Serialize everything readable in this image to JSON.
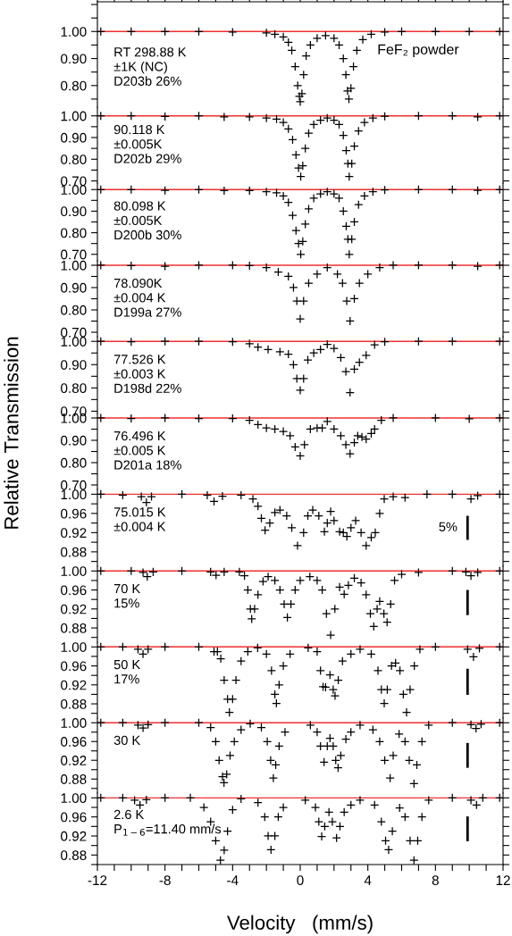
{
  "chart_data": [
    {
      "type": "scatter",
      "marker": "cross",
      "xlim": [
        -12,
        12
      ],
      "ylim": [
        0.72,
        1.11
      ],
      "xticks": [
        -12,
        {
          "value": -11,
          "label": null
        },
        {
          "value": -10,
          "label": null
        },
        {
          "value": -9,
          "label": null
        },
        -8,
        {
          "value": -7,
          "label": null
        },
        {
          "value": -6,
          "label": null
        },
        {
          "value": -5,
          "label": null
        },
        -4,
        {
          "value": -3,
          "label": null
        },
        {
          "value": -2,
          "label": null
        },
        {
          "value": -1,
          "label": null
        },
        0,
        {
          "value": 1,
          "label": null
        },
        {
          "value": 2,
          "label": null
        },
        {
          "value": 3,
          "label": null
        },
        4,
        {
          "value": 5,
          "label": null
        },
        {
          "value": 6,
          "label": null
        },
        {
          "value": 7,
          "label": null
        },
        8,
        {
          "value": 9,
          "label": null
        },
        {
          "value": 10,
          "label": null
        },
        {
          "value": 11,
          "label": null
        },
        12
      ],
      "yticks": [
        {
          "value": 0.75,
          "label": null
        },
        {
          "value": 0.8,
          "label": "0.80"
        },
        {
          "value": 0.85,
          "label": null
        },
        {
          "value": 0.9,
          "label": "0.90"
        },
        {
          "value": 0.95,
          "label": null
        },
        {
          "value": 1.0,
          "label": "1.00"
        },
        {
          "value": 1.05,
          "label": null
        },
        {
          "value": 1.1,
          "label": null
        }
      ],
      "tick_labels": "y",
      "ref_lines": [
        {
          "axis": "y",
          "value": 1.0,
          "color": "#f03030"
        }
      ],
      "annotations": [
        "RT 298.88 K\n±1K (NC)\nD203b 26%",
        "FeF₂ powder"
      ],
      "series": [
        {
          "color": "#000000",
          "x": [
            -11.8,
            -10,
            -8,
            -6,
            -4,
            -2,
            -1.5,
            -1,
            -0.7,
            -0.5,
            -0.3,
            -0.15,
            -0.05,
            0.0,
            0.1,
            0.2,
            0.35,
            0.6,
            1.0,
            1.5,
            2.0,
            2.3,
            2.55,
            2.7,
            2.8,
            2.88,
            3.0,
            3.15,
            3.35,
            3.7,
            4.2,
            5,
            6,
            8,
            10,
            11.8
          ],
          "values": [
            1.0,
            1.0,
            1.0,
            1.0,
            0.998,
            0.995,
            0.99,
            0.98,
            0.96,
            0.93,
            0.87,
            0.8,
            0.76,
            0.74,
            0.77,
            0.84,
            0.91,
            0.95,
            0.975,
            0.985,
            0.975,
            0.95,
            0.9,
            0.84,
            0.78,
            0.75,
            0.79,
            0.87,
            0.93,
            0.97,
            0.99,
            0.998,
            1.0,
            1.0,
            1.0,
            1.0
          ]
        }
      ]
    },
    {
      "type": "scatter",
      "marker": "cross",
      "xlim": [
        -12,
        12
      ],
      "ylim": [
        0.69,
        1.04
      ],
      "xticks": [
        -12,
        -8,
        -4,
        0,
        4,
        8,
        12
      ],
      "yticks": [
        {
          "value": 0.7,
          "label": "0.70"
        },
        {
          "value": 0.75,
          "label": null
        },
        {
          "value": 0.8,
          "label": "0.80"
        },
        {
          "value": 0.85,
          "label": null
        },
        {
          "value": 0.9,
          "label": "0.90"
        },
        {
          "value": 0.95,
          "label": null
        },
        {
          "value": 1.0,
          "label": "1.00"
        }
      ],
      "tick_labels": "y",
      "ref_lines": [
        {
          "axis": "y",
          "value": 1.0,
          "color": "#f03030"
        }
      ],
      "annotations": [
        "90.118 K\n±0.005K\nD202b 29%"
      ],
      "series": [
        {
          "color": "#000000",
          "x": [
            -11.8,
            -10,
            -8,
            -6,
            -4.5,
            -3,
            -2,
            -1.4,
            -1,
            -0.7,
            -0.45,
            -0.25,
            -0.1,
            0.03,
            0.15,
            0.3,
            0.5,
            0.8,
            1.2,
            1.6,
            2.0,
            2.3,
            2.55,
            2.72,
            2.82,
            2.9,
            3.05,
            3.2,
            3.45,
            3.8,
            4.3,
            5,
            7,
            9,
            10.5,
            11.8
          ],
          "values": [
            1.0,
            1.0,
            0.997,
            1.0,
            0.995,
            0.995,
            0.99,
            0.985,
            0.97,
            0.94,
            0.89,
            0.82,
            0.76,
            0.72,
            0.77,
            0.85,
            0.92,
            0.96,
            0.98,
            0.99,
            0.98,
            0.96,
            0.91,
            0.84,
            0.78,
            0.72,
            0.78,
            0.86,
            0.93,
            0.97,
            0.99,
            0.998,
            1.0,
            1.0,
            0.995,
            1.0
          ]
        }
      ]
    },
    {
      "type": "scatter",
      "marker": "cross",
      "xlim": [
        -12,
        12
      ],
      "ylim": [
        0.67,
        1.03
      ],
      "xticks": [
        -12,
        -8,
        -4,
        0,
        4,
        8,
        12
      ],
      "yticks": [
        {
          "value": 0.7,
          "label": "0.70"
        },
        {
          "value": 0.75,
          "label": null
        },
        {
          "value": 0.8,
          "label": "0.80"
        },
        {
          "value": 0.85,
          "label": null
        },
        {
          "value": 0.9,
          "label": "0.90"
        },
        {
          "value": 0.95,
          "label": null
        },
        {
          "value": 1.0,
          "label": "1.00"
        }
      ],
      "tick_labels": "y",
      "ref_lines": [
        {
          "axis": "y",
          "value": 1.0,
          "color": "#f03030"
        }
      ],
      "annotations": [
        "80.098 K\n±0.005K\nD200b 30%"
      ],
      "series": [
        {
          "color": "#000000",
          "x": [
            -11.8,
            -10,
            -8,
            -6,
            -4.5,
            -3,
            -2,
            -1.4,
            -1,
            -0.7,
            -0.45,
            -0.25,
            -0.1,
            0.03,
            0.15,
            0.3,
            0.5,
            0.8,
            1.2,
            1.6,
            2.0,
            2.3,
            2.55,
            2.72,
            2.82,
            2.9,
            3.05,
            3.2,
            3.45,
            3.8,
            4.3,
            5,
            7,
            9,
            10.5,
            11.8
          ],
          "values": [
            1.0,
            1.0,
            0.996,
            1.0,
            0.995,
            0.995,
            0.99,
            0.985,
            0.97,
            0.94,
            0.88,
            0.81,
            0.75,
            0.7,
            0.76,
            0.84,
            0.91,
            0.96,
            0.98,
            0.99,
            0.98,
            0.96,
            0.9,
            0.83,
            0.77,
            0.7,
            0.77,
            0.85,
            0.93,
            0.97,
            0.99,
            0.998,
            1.0,
            1.0,
            0.996,
            1.0
          ]
        }
      ]
    },
    {
      "type": "scatter",
      "marker": "cross",
      "xlim": [
        -12,
        12
      ],
      "ylim": [
        0.68,
        1.02
      ],
      "xticks": [
        -12,
        -8,
        -4,
        0,
        4,
        8,
        12
      ],
      "yticks": [
        {
          "value": 0.7,
          "label": "0.70"
        },
        {
          "value": 0.75,
          "label": null
        },
        {
          "value": 0.8,
          "label": "0.80"
        },
        {
          "value": 0.85,
          "label": null
        },
        {
          "value": 0.9,
          "label": "0.90"
        },
        {
          "value": 0.95,
          "label": null
        },
        {
          "value": 1.0,
          "label": "1.00"
        }
      ],
      "tick_labels": "y",
      "ref_lines": [
        {
          "axis": "y",
          "value": 1.0,
          "color": "#f03030"
        }
      ],
      "annotations": [
        "78.090K\n±0.004 K\nD199a 27%"
      ],
      "series": [
        {
          "color": "#000000",
          "x": [
            -11.8,
            -10,
            -8,
            -6,
            -4,
            -3,
            -2,
            -1.3,
            -0.7,
            -0.4,
            -0.2,
            0.0,
            0.2,
            0.5,
            1.0,
            1.6,
            2.2,
            2.5,
            2.75,
            2.95,
            3.2,
            3.5,
            4.0,
            4.7,
            5.5,
            7,
            9,
            10.5,
            11.8
          ],
          "values": [
            1.0,
            0.998,
            0.996,
            1.0,
            1.0,
            0.998,
            0.99,
            0.97,
            0.95,
            0.9,
            0.84,
            0.76,
            0.84,
            0.92,
            0.96,
            0.99,
            0.96,
            0.92,
            0.84,
            0.75,
            0.85,
            0.92,
            0.96,
            0.99,
            1.0,
            1.0,
            1.0,
            0.996,
            1.0
          ]
        }
      ]
    },
    {
      "type": "scatter",
      "marker": "cross",
      "xlim": [
        -12,
        12
      ],
      "ylim": [
        0.69,
        1.02
      ],
      "xticks": [
        -12,
        -8,
        -4,
        0,
        4,
        8,
        12
      ],
      "yticks": [
        {
          "value": 0.7,
          "label": "0.70"
        },
        {
          "value": 0.75,
          "label": null
        },
        {
          "value": 0.8,
          "label": "0.80"
        },
        {
          "value": 0.85,
          "label": null
        },
        {
          "value": 0.9,
          "label": "0.90"
        },
        {
          "value": 0.95,
          "label": null
        },
        {
          "value": 1.0,
          "label": "1.00"
        }
      ],
      "tick_labels": "y",
      "ref_lines": [
        {
          "axis": "y",
          "value": 1.0,
          "color": "#f03030"
        }
      ],
      "annotations": [
        "77.526 K\n±0.003 K\nD198d 22%"
      ],
      "series": [
        {
          "color": "#000000",
          "x": [
            -11.8,
            -10,
            -8,
            -6,
            -4,
            -3,
            -2.5,
            -1.9,
            -1.2,
            -0.7,
            -0.4,
            -0.2,
            0.0,
            0.2,
            0.45,
            0.8,
            1.2,
            1.6,
            2.0,
            2.4,
            2.7,
            2.95,
            3.2,
            3.5,
            3.9,
            4.4,
            5,
            7,
            9,
            11.8
          ],
          "values": [
            1.0,
            0.998,
            1.0,
            1.0,
            0.998,
            0.99,
            0.975,
            0.965,
            0.955,
            0.945,
            0.9,
            0.84,
            0.79,
            0.84,
            0.92,
            0.95,
            0.965,
            0.987,
            0.97,
            0.93,
            0.87,
            0.78,
            0.88,
            0.91,
            0.94,
            0.985,
            0.998,
            1.0,
            1.0,
            1.0
          ]
        }
      ]
    },
    {
      "type": "scatter",
      "marker": "cross",
      "ylabel": "Relative Transmission",
      "xlim": [
        -12,
        12
      ],
      "ylim": [
        0.68,
        1.02
      ],
      "xticks": [
        -12,
        -8,
        -4,
        0,
        4,
        8,
        12
      ],
      "yticks": [
        {
          "value": 0.7,
          "label": "0.70"
        },
        {
          "value": 0.75,
          "label": null
        },
        {
          "value": 0.8,
          "label": "0.80"
        },
        {
          "value": 0.85,
          "label": null
        },
        {
          "value": 0.9,
          "label": "0.90"
        },
        {
          "value": 0.95,
          "label": null
        },
        {
          "value": 1.0,
          "label": "1.00"
        }
      ],
      "tick_labels": "y",
      "ref_lines": [
        {
          "axis": "y",
          "value": 1.0,
          "color": "#f03030"
        }
      ],
      "annotations": [
        "76.496 K\n±0.005 K\nD201a 18%"
      ],
      "series": [
        {
          "color": "#000000",
          "x": [
            -11.8,
            -10,
            -8,
            -6,
            -4,
            -3,
            -2.5,
            -2,
            -1.5,
            -1,
            -0.6,
            -0.3,
            0.0,
            0.25,
            0.6,
            1.0,
            1.3,
            1.6,
            2.0,
            2.4,
            2.7,
            2.95,
            3.2,
            3.4,
            3.65,
            3.9,
            4.2,
            4.4,
            4.8,
            5.5,
            8,
            10,
            11.8
          ],
          "values": [
            1.0,
            0.998,
            1.0,
            0.998,
            0.998,
            0.99,
            0.97,
            0.955,
            0.95,
            0.94,
            0.92,
            0.87,
            0.83,
            0.88,
            0.95,
            0.955,
            0.955,
            0.985,
            0.95,
            0.92,
            0.88,
            0.84,
            0.89,
            0.92,
            0.915,
            0.905,
            0.93,
            0.95,
            0.99,
            1.0,
            1.0,
            0.996,
            1.0
          ]
        }
      ]
    },
    {
      "type": "scatter",
      "marker": "cross",
      "xlim": [
        -12,
        12
      ],
      "ylim": [
        0.85,
        1.01
      ],
      "xticks": [
        -12,
        -8,
        -4,
        0,
        4,
        8,
        12
      ],
      "yticks": [
        {
          "value": 0.86,
          "label": null
        },
        {
          "value": 0.88,
          "label": "0.88"
        },
        {
          "value": 0.9,
          "label": null
        },
        {
          "value": 0.92,
          "label": "0.92"
        },
        {
          "value": 0.94,
          "label": null
        },
        {
          "value": 0.96,
          "label": "0.96"
        },
        {
          "value": 0.98,
          "label": null
        },
        {
          "value": 1.0,
          "label": "1.00"
        }
      ],
      "tick_labels": "y",
      "ref_lines": [
        {
          "axis": "y",
          "value": 1.0,
          "color": "#f03030"
        }
      ],
      "annotations": [
        "75.015 K\n±0.004 K",
        {
          "text": "5%",
          "x": 9.9,
          "y": 0.93
        }
      ],
      "series": [
        {
          "color": "#000000",
          "x": [
            -11.8,
            -10.5,
            -9.4,
            -9.1,
            -8.8,
            -7,
            -5.5,
            -5.1,
            -4.6,
            -3.5,
            -2.8,
            -2.5,
            -2.3,
            -2.08,
            -1.8,
            -1.5,
            -1.2,
            -0.8,
            -0.5,
            -0.16,
            0.2,
            0.45,
            0.74,
            1.1,
            1.43,
            1.6,
            1.8,
            2.0,
            2.33,
            2.55,
            2.76,
            3.0,
            3.28,
            3.6,
            3.9,
            4.2,
            4.44,
            4.7,
            4.97,
            5.5,
            6.2,
            7.5,
            9,
            10.1,
            10.5,
            11.8
          ],
          "values": [
            1.0,
            0.998,
            0.995,
            0.983,
            0.995,
            1.0,
            0.998,
            0.985,
            0.996,
            0.998,
            0.99,
            0.975,
            0.95,
            0.925,
            0.94,
            0.962,
            0.967,
            0.955,
            0.93,
            0.893,
            0.92,
            0.955,
            0.967,
            0.955,
            0.922,
            0.94,
            0.964,
            0.945,
            0.922,
            0.92,
            0.912,
            0.93,
            0.945,
            0.92,
            0.893,
            0.91,
            0.92,
            0.96,
            0.99,
            0.995,
            0.993,
            1.0,
            1.0,
            0.99,
            0.997,
            1.0
          ]
        },
        {
          "type": "line",
          "marker": "none",
          "color": "#000000",
          "x": [
            9.9,
            9.9
          ],
          "values": [
            0.905,
            0.955
          ]
        }
      ]
    },
    {
      "type": "scatter",
      "marker": "cross",
      "xlim": [
        -12,
        12
      ],
      "ylim": [
        0.85,
        1.01
      ],
      "xticks": [
        -12,
        -8,
        -4,
        0,
        4,
        8,
        12
      ],
      "yticks": [
        {
          "value": 0.86,
          "label": null
        },
        {
          "value": 0.88,
          "label": "0.88"
        },
        {
          "value": 0.9,
          "label": null
        },
        {
          "value": 0.92,
          "label": "0.92"
        },
        {
          "value": 0.94,
          "label": null
        },
        {
          "value": 0.96,
          "label": "0.96"
        },
        {
          "value": 0.98,
          "label": null
        },
        {
          "value": 1.0,
          "label": "1.00"
        }
      ],
      "tick_labels": "y",
      "ref_lines": [
        {
          "axis": "y",
          "value": 1.0,
          "color": "#f03030"
        }
      ],
      "annotations": [
        "70 K\n15%"
      ],
      "series": [
        {
          "color": "#000000",
          "x": [
            -11.8,
            -10,
            -9.3,
            -9.05,
            -8.7,
            -7,
            -5.3,
            -4.98,
            -4.5,
            -3.6,
            -3.3,
            -3.1,
            -2.95,
            -2.87,
            -2.7,
            -2.5,
            -2.2,
            -1.9,
            -1.5,
            -1.2,
            -0.95,
            -0.76,
            -0.55,
            -0.3,
            0.0,
            0.57,
            1.0,
            1.3,
            1.55,
            1.8,
            2.05,
            2.33,
            2.6,
            2.85,
            3.2,
            3.6,
            3.9,
            4.15,
            4.35,
            4.55,
            4.7,
            4.95,
            5.14,
            5.35,
            5.58,
            6,
            7,
            9,
            9.8,
            10.1,
            10.5,
            11.8
          ],
          "values": [
            1.0,
            1.0,
            0.997,
            0.988,
            0.998,
            1.0,
            0.998,
            0.991,
            0.998,
            0.998,
            0.99,
            0.96,
            0.92,
            0.899,
            0.92,
            0.95,
            0.978,
            0.988,
            0.98,
            0.96,
            0.93,
            0.902,
            0.93,
            0.96,
            0.98,
            0.988,
            0.98,
            0.96,
            0.91,
            0.865,
            0.92,
            0.966,
            0.951,
            0.97,
            0.985,
            0.975,
            0.95,
            0.91,
            0.883,
            0.92,
            0.936,
            0.91,
            0.892,
            0.93,
            0.98,
            0.993,
            0.997,
            1.0,
            0.998,
            0.99,
            0.997,
            1.0
          ]
        },
        {
          "type": "line",
          "marker": "none",
          "color": "#000000",
          "x": [
            9.9,
            9.9
          ],
          "values": [
            0.907,
            0.96
          ]
        }
      ]
    },
    {
      "type": "scatter",
      "marker": "cross",
      "xlim": [
        -12,
        12
      ],
      "ylim": [
        0.85,
        1.01
      ],
      "xticks": [
        -12,
        -8,
        -4,
        0,
        4,
        8,
        12
      ],
      "yticks": [
        {
          "value": 0.86,
          "label": null
        },
        {
          "value": 0.88,
          "label": "0.88"
        },
        {
          "value": 0.9,
          "label": null
        },
        {
          "value": 0.92,
          "label": "0.92"
        },
        {
          "value": 0.94,
          "label": null
        },
        {
          "value": 0.96,
          "label": "0.96"
        },
        {
          "value": 0.98,
          "label": null
        },
        {
          "value": 1.0,
          "label": "1.00"
        }
      ],
      "tick_labels": "y",
      "ref_lines": [
        {
          "axis": "y",
          "value": 1.0,
          "color": "#f03030"
        }
      ],
      "annotations": [
        "50 K\n17%"
      ],
      "series": [
        {
          "color": "#000000",
          "x": [
            -11.8,
            -10.5,
            -9.6,
            -9.3,
            -9.0,
            -8,
            -6,
            -5.1,
            -4.9,
            -4.7,
            -4.5,
            -4.3,
            -4.19,
            -4.0,
            -3.8,
            -3.5,
            -3.1,
            -2.52,
            -2.0,
            -1.7,
            -1.5,
            -1.41,
            -1.25,
            -1.0,
            -0.6,
            0.47,
            1.0,
            1.2,
            1.35,
            1.5,
            1.76,
            1.95,
            2.06,
            2.25,
            2.5,
            3.0,
            3.54,
            4.2,
            4.6,
            4.8,
            4.97,
            5.15,
            5.4,
            5.64,
            5.9,
            6.1,
            6.29,
            6.5,
            6.75,
            7.08,
            8,
            9.9,
            10.25,
            10.6,
            11.8
          ],
          "values": [
            1.0,
            1.0,
            0.995,
            0.985,
            0.995,
            1.0,
            1.0,
            0.99,
            0.99,
            0.975,
            0.93,
            0.89,
            0.862,
            0.89,
            0.93,
            0.97,
            0.99,
            0.998,
            0.985,
            0.95,
            0.9,
            0.881,
            0.92,
            0.96,
            0.985,
            0.998,
            0.99,
            0.95,
            0.916,
            0.915,
            0.941,
            0.91,
            0.897,
            0.93,
            0.97,
            0.985,
            0.995,
            0.985,
            0.95,
            0.91,
            0.881,
            0.91,
            0.96,
            0.966,
            0.95,
            0.9,
            0.862,
            0.91,
            0.96,
            0.995,
            1.0,
            0.995,
            0.979,
            0.997,
            1.0
          ]
        },
        {
          "type": "line",
          "marker": "none",
          "color": "#000000",
          "x": [
            9.9,
            9.9
          ],
          "values": [
            0.899,
            0.954
          ]
        }
      ]
    },
    {
      "type": "scatter",
      "marker": "cross",
      "xlim": [
        -12,
        12
      ],
      "ylim": [
        0.85,
        1.01
      ],
      "xticks": [
        -12,
        -8,
        -4,
        0,
        4,
        8,
        12
      ],
      "yticks": [
        {
          "value": 0.86,
          "label": null
        },
        {
          "value": 0.88,
          "label": "0.88"
        },
        {
          "value": 0.9,
          "label": null
        },
        {
          "value": 0.92,
          "label": "0.92"
        },
        {
          "value": 0.94,
          "label": null
        },
        {
          "value": 0.96,
          "label": "0.96"
        },
        {
          "value": 0.98,
          "label": null
        },
        {
          "value": 1.0,
          "label": "1.00"
        }
      ],
      "tick_labels": "y",
      "ref_lines": [
        {
          "axis": "y",
          "value": 1.0,
          "color": "#f03030"
        }
      ],
      "annotations": [
        "30 K"
      ],
      "series": [
        {
          "color": "#000000",
          "x": [
            -11.8,
            -10.5,
            -9.6,
            -9.3,
            -9.0,
            -8,
            -6,
            -5.3,
            -5.0,
            -4.8,
            -4.6,
            -4.51,
            -4.35,
            -4.15,
            -3.9,
            -3.5,
            -2.96,
            -2.3,
            -1.95,
            -1.75,
            -1.59,
            -1.45,
            -1.25,
            -0.9,
            0.6,
            1.0,
            1.2,
            1.41,
            1.6,
            1.76,
            1.95,
            2.1,
            2.24,
            2.4,
            2.7,
            3.0,
            3.54,
            4.3,
            4.7,
            5.0,
            5.32,
            5.5,
            5.85,
            6.2,
            6.45,
            6.73,
            6.9,
            7.2,
            7.6,
            9,
            10.1,
            10.4,
            10.7,
            11.8
          ],
          "values": [
            1.0,
            1.0,
            0.995,
            0.989,
            0.996,
            1.0,
            1.0,
            0.99,
            0.96,
            0.92,
            0.885,
            0.872,
            0.89,
            0.93,
            0.96,
            0.985,
            0.998,
            0.99,
            0.96,
            0.92,
            0.882,
            0.91,
            0.95,
            0.98,
            0.995,
            0.98,
            0.95,
            0.916,
            0.95,
            0.967,
            0.95,
            0.92,
            0.904,
            0.93,
            0.965,
            0.98,
            0.995,
            0.985,
            0.96,
            0.92,
            0.882,
            0.93,
            0.976,
            0.96,
            0.92,
            0.87,
            0.91,
            0.96,
            0.995,
            1.0,
            0.996,
            0.988,
            0.997,
            1.0
          ]
        },
        {
          "type": "line",
          "marker": "none",
          "color": "#000000",
          "x": [
            9.9,
            9.9
          ],
          "values": [
            0.904,
            0.957
          ]
        }
      ]
    },
    {
      "type": "scatter",
      "marker": "cross",
      "xlabel": "Velocity   (mm/s)",
      "xlim": [
        -12,
        12
      ],
      "ylim": [
        0.86,
        1.01
      ],
      "xticks": [
        -12,
        {
          "value": -11,
          "label": null
        },
        {
          "value": -10,
          "label": null
        },
        {
          "value": -9,
          "label": null
        },
        -8,
        {
          "value": -7,
          "label": null
        },
        {
          "value": -6,
          "label": null
        },
        {
          "value": -5,
          "label": null
        },
        -4,
        {
          "value": -3,
          "label": null
        },
        {
          "value": -2,
          "label": null
        },
        {
          "value": -1,
          "label": null
        },
        0,
        {
          "value": 1,
          "label": null
        },
        {
          "value": 2,
          "label": null
        },
        {
          "value": 3,
          "label": null
        },
        4,
        {
          "value": 5,
          "label": null
        },
        {
          "value": 6,
          "label": null
        },
        {
          "value": 7,
          "label": null
        },
        8,
        {
          "value": 9,
          "label": null
        },
        {
          "value": 10,
          "label": null
        },
        {
          "value": 11,
          "label": null
        },
        12
      ],
      "yticks": [
        {
          "value": 0.86,
          "label": null
        },
        {
          "value": 0.88,
          "label": "0.88"
        },
        {
          "value": 0.9,
          "label": null
        },
        {
          "value": 0.92,
          "label": "0.92"
        },
        {
          "value": 0.94,
          "label": null
        },
        {
          "value": 0.96,
          "label": "0.96"
        },
        {
          "value": 0.98,
          "label": null
        },
        {
          "value": 1.0,
          "label": "1.00"
        }
      ],
      "ref_lines": [
        {
          "axis": "y",
          "value": 1.0,
          "color": "#f03030"
        }
      ],
      "annotations": [
        "2.6 K\nP$_{1−6}$=11.40 mm/s"
      ],
      "series": [
        {
          "color": "#000000",
          "x": [
            -11.8,
            -10.5,
            -9.8,
            -9.48,
            -9.1,
            -8,
            -6.5,
            -5.7,
            -5.3,
            -5.0,
            -4.72,
            -4.5,
            -4.3,
            -4.0,
            -3.5,
            -2.5,
            -2.1,
            -1.9,
            -1.73,
            -1.5,
            -1.3,
            -1.0,
            0.3,
            0.9,
            1.1,
            1.27,
            1.45,
            1.7,
            1.9,
            2.15,
            2.35,
            2.6,
            3.0,
            3.54,
            4.4,
            4.8,
            5.05,
            5.23,
            5.45,
            5.88,
            6.2,
            6.5,
            6.73,
            6.95,
            7.2,
            7.6,
            9,
            10.1,
            10.43,
            10.8,
            11.8
          ],
          "values": [
            1.0,
            1.0,
            0.995,
            0.985,
            0.996,
            1.0,
            1.0,
            0.98,
            0.95,
            0.91,
            0.869,
            0.89,
            0.93,
            0.975,
            0.998,
            0.99,
            0.96,
            0.92,
            0.891,
            0.92,
            0.96,
            0.98,
            0.995,
            0.98,
            0.95,
            0.919,
            0.94,
            0.97,
            0.95,
            0.916,
            0.94,
            0.97,
            0.985,
            0.995,
            0.985,
            0.95,
            0.91,
            0.891,
            0.93,
            0.979,
            0.96,
            0.91,
            0.869,
            0.91,
            0.96,
            0.995,
            1.0,
            0.995,
            0.985,
            1.0,
            1.0
          ]
        },
        {
          "type": "line",
          "marker": "none",
          "color": "#000000",
          "x": [
            9.9,
            9.9
          ],
          "values": [
            0.909,
            0.961
          ]
        }
      ]
    }
  ]
}
